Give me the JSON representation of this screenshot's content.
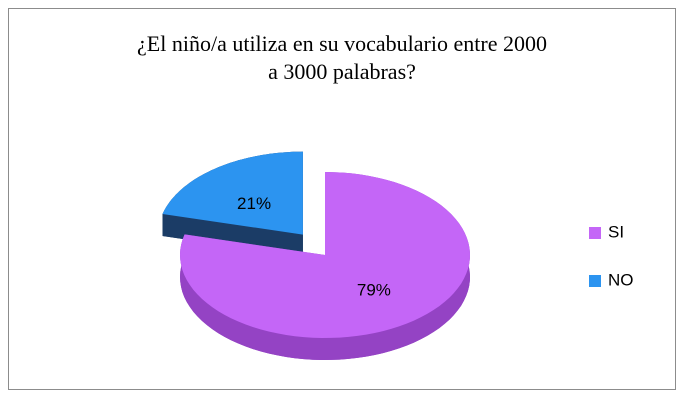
{
  "chart_data": {
    "type": "pie3d",
    "title": "¿El niño/a utiliza en su vocabulario entre 2000\na 3000 palabras?",
    "categories": [
      "SI",
      "NO"
    ],
    "values": [
      79,
      21
    ],
    "value_labels": [
      "79%",
      "21%"
    ],
    "colors": [
      "#c466f7",
      "#2c94f0"
    ],
    "side_colors": [
      "#9443c4",
      "#1b3c66"
    ],
    "exploded": [
      false,
      true
    ],
    "legend": "right"
  }
}
